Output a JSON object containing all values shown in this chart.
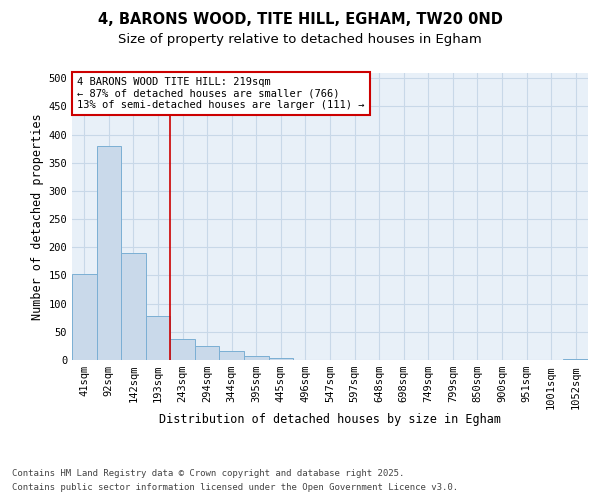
{
  "title_line1": "4, BARONS WOOD, TITE HILL, EGHAM, TW20 0ND",
  "title_line2": "Size of property relative to detached houses in Egham",
  "xlabel": "Distribution of detached houses by size in Egham",
  "ylabel": "Number of detached properties",
  "categories": [
    "41sqm",
    "92sqm",
    "142sqm",
    "193sqm",
    "243sqm",
    "294sqm",
    "344sqm",
    "395sqm",
    "445sqm",
    "496sqm",
    "547sqm",
    "597sqm",
    "648sqm",
    "698sqm",
    "749sqm",
    "799sqm",
    "850sqm",
    "900sqm",
    "951sqm",
    "1001sqm",
    "1052sqm"
  ],
  "values": [
    153,
    380,
    190,
    78,
    38,
    25,
    16,
    7,
    3,
    0,
    0,
    0,
    0,
    0,
    0,
    0,
    0,
    0,
    0,
    0,
    2
  ],
  "bar_color": "#c9d9ea",
  "bar_edge_color": "#7bafd4",
  "vline_color": "#cc0000",
  "annotation_text": "4 BARONS WOOD TITE HILL: 219sqm\n← 87% of detached houses are smaller (766)\n13% of semi-detached houses are larger (111) →",
  "annotation_box_color": "white",
  "annotation_box_edge": "#cc0000",
  "ylim": [
    0,
    510
  ],
  "yticks": [
    0,
    50,
    100,
    150,
    200,
    250,
    300,
    350,
    400,
    450,
    500
  ],
  "grid_color": "#c8d8e8",
  "bg_color": "#e8f0f8",
  "footer_line1": "Contains HM Land Registry data © Crown copyright and database right 2025.",
  "footer_line2": "Contains public sector information licensed under the Open Government Licence v3.0.",
  "title_fontsize": 10.5,
  "subtitle_fontsize": 9.5,
  "axis_label_fontsize": 8.5,
  "tick_fontsize": 7.5,
  "annotation_fontsize": 7.5,
  "footer_fontsize": 6.5
}
